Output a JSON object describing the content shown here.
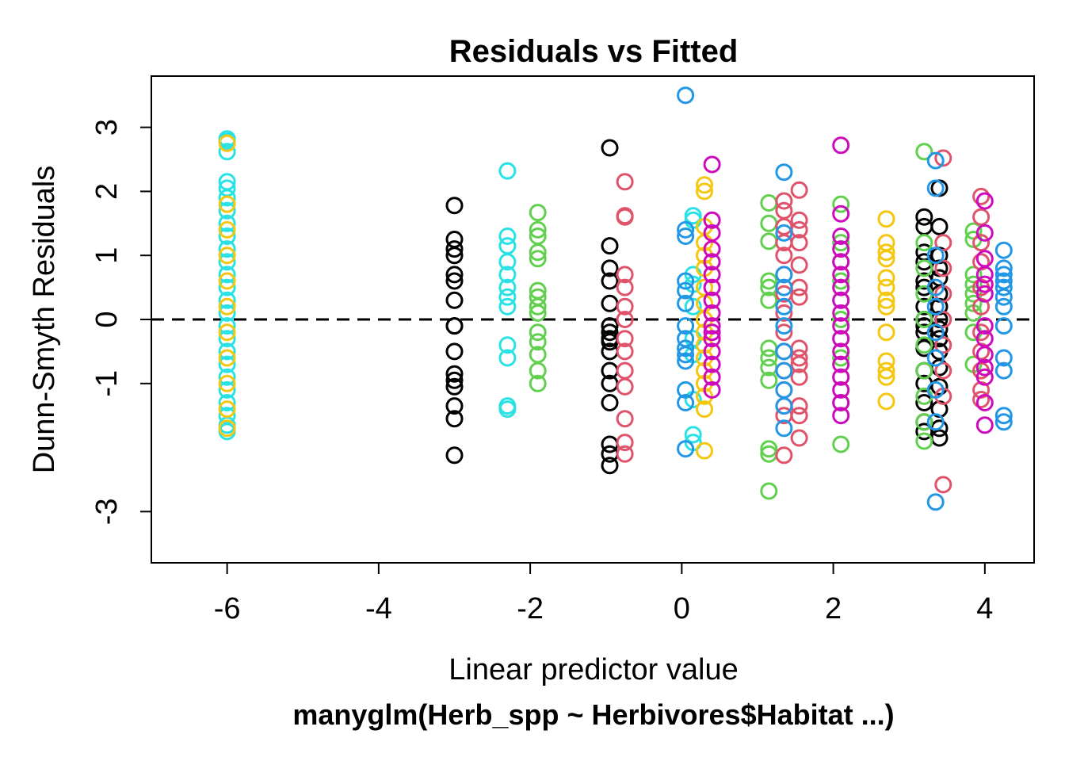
{
  "chart_data": {
    "type": "scatter",
    "title": "Residuals vs Fitted",
    "xlabel": "Linear predictor value",
    "ylabel": "Dunn-Smyth Residuals",
    "subtitle": "manyglm(Herb_spp ~ Herbivores$Habitat ...)",
    "xlim": [
      -7.0,
      4.65
    ],
    "ylim": [
      -3.8,
      3.8
    ],
    "xticks": [
      -6,
      -4,
      -2,
      0,
      2,
      4
    ],
    "yticks": [
      -3,
      -1,
      0,
      1,
      2,
      3
    ],
    "grid": false,
    "legend": "none",
    "reference_line": {
      "y": 0,
      "style": "dashed",
      "color": "#000000"
    },
    "series_colors": {
      "black": "#000000",
      "red": "#DF536B",
      "green": "#61D04F",
      "blue": "#2297E6",
      "cyan": "#28E2E5",
      "magenta": "#CD0BBC",
      "yellow": "#F5C710"
    },
    "series": [
      {
        "name": "black",
        "x": -3.0,
        "y": [
          1.78,
          1.25,
          1.1,
          1.0,
          0.7,
          0.6,
          0.3,
          -0.1,
          -0.1,
          -0.5,
          -0.85,
          -0.95,
          -1.05,
          -1.35,
          -1.55,
          -2.12
        ]
      },
      {
        "name": "black",
        "x": -0.95,
        "y": [
          2.68,
          1.15,
          0.8,
          0.6,
          0.25,
          -0.2,
          -0.35,
          -0.5,
          -0.8,
          -1.0,
          -1.3,
          -1.95,
          -2.1,
          -2.28,
          -0.3,
          -0.1
        ]
      },
      {
        "name": "black",
        "x": 3.2,
        "y": [
          1.6,
          1.45,
          1.05,
          0.9,
          0.6,
          0.2,
          0.0,
          -0.2,
          -0.45,
          -0.8,
          -1.0,
          -1.3,
          -1.6,
          -1.75,
          -0.1,
          0.5
        ]
      },
      {
        "name": "black",
        "x": 3.4,
        "y": [
          2.05,
          1.45,
          1.0,
          0.8,
          0.4,
          0.2,
          0.0,
          -0.3,
          -0.5,
          -0.75,
          -1.05,
          -1.4,
          -1.7,
          -1.85,
          -0.15,
          0.65
        ]
      },
      {
        "name": "cyan",
        "x": -6.0,
        "y": [
          2.82,
          2.78,
          2.62,
          2.15,
          2.05,
          1.9,
          1.7,
          1.5,
          1.3,
          1.1,
          0.9,
          0.7,
          0.5,
          0.3,
          0.1,
          -0.1,
          -0.3,
          -0.5,
          -0.7,
          -0.9,
          -1.1,
          -1.3,
          -1.5,
          -1.65,
          -1.75
        ]
      },
      {
        "name": "cyan",
        "x": -2.3,
        "y": [
          2.32,
          1.3,
          1.15,
          0.9,
          0.7,
          0.5,
          0.35,
          0.2,
          -0.4,
          -0.6,
          -1.35,
          -1.4
        ]
      },
      {
        "name": "cyan",
        "x": 0.15,
        "y": [
          1.62,
          1.55,
          0.7,
          0.55,
          0.2,
          -0.3,
          -0.55,
          -1.25,
          -1.8,
          -1.92
        ]
      },
      {
        "name": "yellow",
        "x": -6.0,
        "y": [
          2.75,
          1.8,
          1.4,
          1.0,
          0.6,
          0.2,
          -0.2,
          -0.6,
          -1.0,
          -1.4,
          -1.7
        ]
      },
      {
        "name": "yellow",
        "x": 0.3,
        "y": [
          2.1,
          2.0,
          1.45,
          1.2,
          1.0,
          0.8,
          0.5,
          0.25,
          0.0,
          -0.2,
          -0.4,
          -0.6,
          -0.8,
          -1.0,
          -1.2,
          -1.4,
          -2.05
        ]
      },
      {
        "name": "yellow",
        "x": 2.7,
        "y": [
          1.57,
          1.2,
          1.05,
          0.95,
          0.65,
          0.5,
          0.3,
          0.2,
          -0.2,
          -0.65,
          -0.8,
          -0.9,
          -1.28
        ]
      },
      {
        "name": "green",
        "x": -1.9,
        "y": [
          1.67,
          1.4,
          1.3,
          1.05,
          0.95,
          0.45,
          0.35,
          0.2,
          0.1,
          -0.2,
          -0.35,
          -0.55,
          -0.8,
          -1.0
        ]
      },
      {
        "name": "green",
        "x": 1.15,
        "y": [
          1.82,
          1.5,
          1.22,
          0.6,
          0.5,
          0.3,
          -0.45,
          -0.6,
          -0.75,
          -0.95,
          -2.02,
          -2.1,
          -2.68
        ]
      },
      {
        "name": "green",
        "x": 2.1,
        "y": [
          1.8,
          1.2,
          0.9,
          0.6,
          0.3,
          0.0,
          -0.3,
          -0.6,
          -0.9,
          -1.3,
          -1.95
        ]
      },
      {
        "name": "green",
        "x": 3.2,
        "y": [
          2.62,
          1.2,
          0.8,
          0.4,
          0.0,
          -0.4,
          -0.8,
          -1.2,
          -1.6,
          -1.9
        ]
      },
      {
        "name": "green",
        "x": 3.85,
        "y": [
          1.38,
          1.25,
          0.7,
          0.55,
          0.4,
          0.25,
          0.1,
          -0.2,
          -0.7
        ]
      },
      {
        "name": "red",
        "x": -0.75,
        "y": [
          2.15,
          1.62,
          1.6,
          0.7,
          0.5,
          0.2,
          0.0,
          -0.3,
          -0.5,
          -0.8,
          -1.05,
          -1.55,
          -1.92,
          -2.1
        ]
      },
      {
        "name": "red",
        "x": 1.35,
        "y": [
          1.85,
          1.7,
          1.45,
          1.2,
          1.0,
          0.7,
          0.4,
          0.1,
          -0.2,
          -0.5,
          -0.8,
          -1.1,
          -1.35,
          -1.5,
          -2.12
        ]
      },
      {
        "name": "red",
        "x": 1.55,
        "y": [
          2.02,
          1.55,
          1.4,
          1.2,
          0.85,
          0.5,
          0.35,
          -0.45,
          -0.6,
          -0.7,
          -0.9,
          -1.35,
          -1.5,
          -1.85
        ]
      },
      {
        "name": "red",
        "x": 3.45,
        "y": [
          2.52,
          1.2,
          0.8,
          0.4,
          0.0,
          -0.4,
          -0.8,
          -1.2,
          -2.58
        ]
      },
      {
        "name": "red",
        "x": 3.95,
        "y": [
          1.92,
          1.6,
          1.2,
          0.9,
          0.5,
          0.2,
          -0.2,
          -0.5,
          -0.8,
          -1.1,
          -1.25
        ]
      },
      {
        "name": "magenta",
        "x": 0.4,
        "y": [
          2.42,
          1.55,
          1.35,
          1.1,
          0.9,
          0.7,
          0.5,
          0.3,
          0.1,
          -0.1,
          -0.3,
          -0.5,
          -0.7,
          -0.9,
          -1.1,
          -0.2
        ]
      },
      {
        "name": "magenta",
        "x": 2.1,
        "y": [
          2.72,
          1.65,
          1.3,
          1.1,
          0.9,
          0.7,
          0.5,
          0.3,
          0.1,
          -0.1,
          -0.3,
          -0.5,
          -0.7,
          -0.9,
          -1.1,
          -1.3,
          -1.5
        ]
      },
      {
        "name": "magenta",
        "x": 4.0,
        "y": [
          1.85,
          1.35,
          0.95,
          0.7,
          0.55,
          0.4,
          -0.1,
          -0.3,
          -0.55,
          -0.75,
          -0.9,
          -1.3,
          -1.65
        ]
      },
      {
        "name": "blue",
        "x": 0.05,
        "y": [
          3.5,
          1.4,
          1.3,
          0.6,
          0.45,
          0.25,
          -0.1,
          -0.3,
          -0.45,
          -0.55,
          -0.65,
          -1.1,
          -1.3,
          -2.02
        ]
      },
      {
        "name": "blue",
        "x": 1.35,
        "y": [
          2.3,
          1.35,
          0.7,
          0.5,
          0.2,
          -0.1,
          -0.5,
          -0.8,
          -1.1,
          -1.35,
          -1.7
        ]
      },
      {
        "name": "blue",
        "x": 3.35,
        "y": [
          2.48,
          2.05,
          1.0,
          0.5,
          0.2,
          -0.2,
          -0.6,
          -1.1,
          -1.6,
          -2.85
        ]
      },
      {
        "name": "blue",
        "x": 4.25,
        "y": [
          1.08,
          0.8,
          0.7,
          0.6,
          0.5,
          0.35,
          0.2,
          -0.1,
          -0.6,
          -0.8,
          -1.5,
          -1.6
        ]
      }
    ]
  }
}
